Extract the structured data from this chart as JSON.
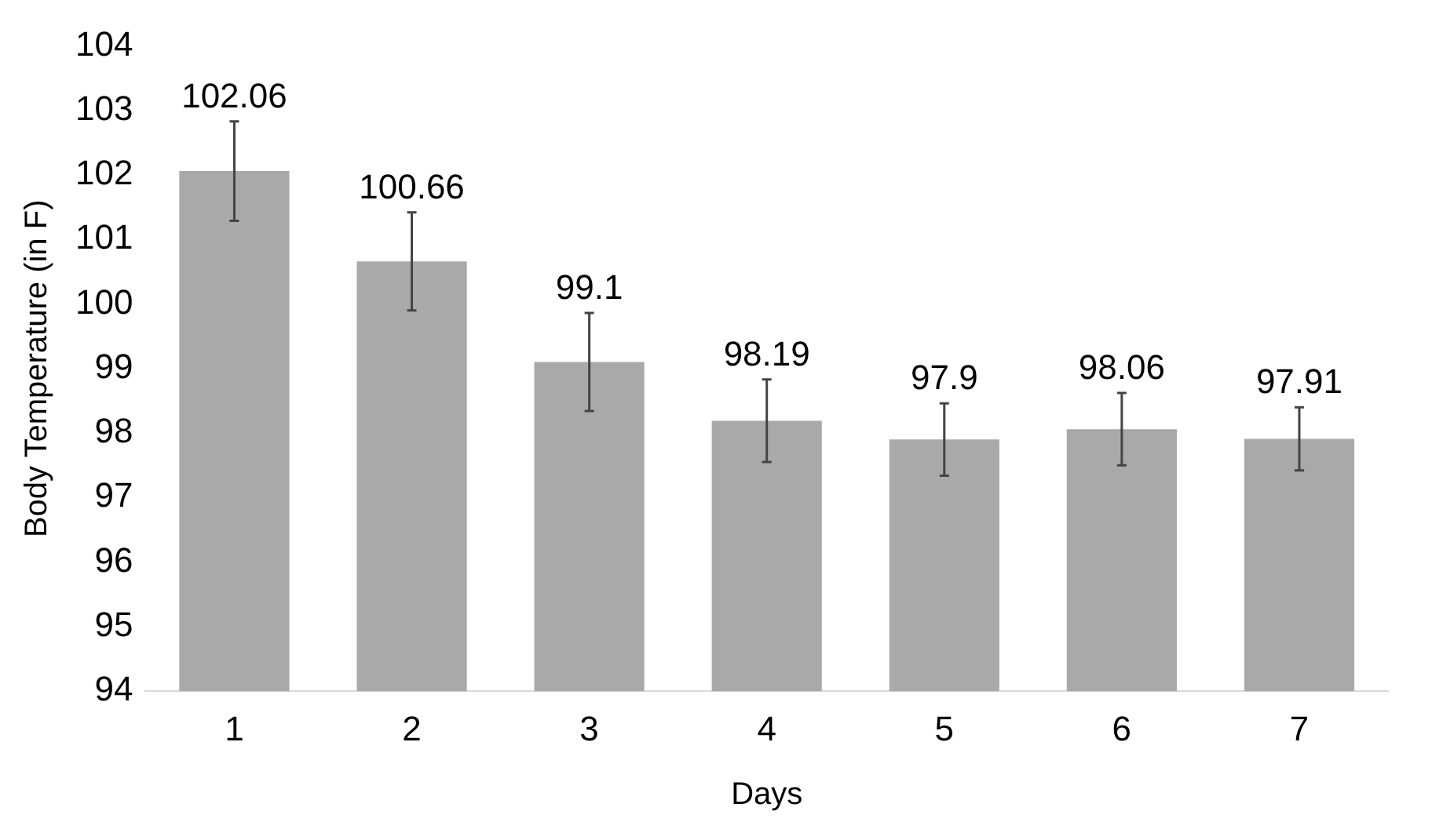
{
  "chart_data": {
    "type": "bar",
    "xlabel": "Days",
    "ylabel": "Body Temperature (in F)",
    "categories": [
      "1",
      "2",
      "3",
      "4",
      "5",
      "6",
      "7"
    ],
    "values": [
      102.06,
      100.66,
      99.1,
      98.19,
      97.9,
      98.06,
      97.91
    ],
    "errors": [
      0.77,
      0.76,
      0.76,
      0.64,
      0.56,
      0.56,
      0.49
    ],
    "color": "#a9a9a9",
    "ylim": [
      94,
      104
    ],
    "yticks": [
      94,
      95,
      96,
      97,
      98,
      99,
      100,
      101,
      102,
      103,
      104
    ],
    "grid": false,
    "data_labels": true
  }
}
